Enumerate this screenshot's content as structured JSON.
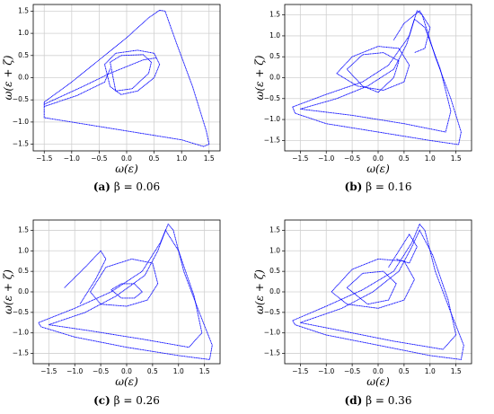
{
  "chart_data": [
    {
      "type": "line",
      "caption_tag": "(a)",
      "caption": "β = 0.06",
      "xlabel": "ω(ε)",
      "ylabel": "ω(ε + ζ)",
      "xlim": [
        -1.7,
        1.7
      ],
      "ylim": [
        -1.65,
        1.65
      ],
      "grid": true,
      "xticks": [
        {
          "value": -1.5,
          "label": "−1.5"
        },
        {
          "value": -1,
          "label": "−1.0"
        },
        {
          "value": -0.5,
          "label": "−0.5"
        },
        {
          "value": 0,
          "label": "0.0"
        },
        0.5,
        {
          "value": 1,
          "label": "1.0"
        },
        1.5
      ],
      "yticks": [
        {
          "value": -1.5,
          "label": "−1.5"
        },
        {
          "value": -1,
          "label": "−1.0"
        },
        {
          "value": -0.5,
          "label": "−0.5"
        },
        {
          "value": 0,
          "label": "0.0"
        },
        0.5,
        {
          "value": 1,
          "label": "1.0"
        },
        1.5
      ],
      "series": [
        {
          "color": "#0000ff",
          "x": [
            -1.5,
            -1.0,
            -0.5,
            0.0,
            0.4,
            0.6,
            0.7,
            0.9,
            1.2,
            1.45,
            1.5,
            1.4,
            1.0,
            0.0,
            -1.0,
            -1.5,
            -1.5
          ],
          "values": [
            -0.55,
            -0.1,
            0.4,
            0.9,
            1.35,
            1.52,
            1.5,
            0.8,
            -0.2,
            -1.2,
            -1.5,
            -1.55,
            -1.4,
            -1.2,
            -1.0,
            -0.9,
            -0.55
          ]
        },
        {
          "color": "#0000ff",
          "x": [
            -0.4,
            -0.2,
            0.2,
            0.5,
            0.6,
            0.5,
            0.2,
            -0.1,
            -0.3,
            -0.4
          ],
          "values": [
            0.3,
            0.55,
            0.62,
            0.55,
            0.3,
            0.0,
            -0.3,
            -0.38,
            -0.2,
            0.3
          ]
        },
        {
          "color": "#0000ff",
          "x": [
            -0.3,
            -0.1,
            0.3,
            0.45,
            0.4,
            0.1,
            -0.2,
            -0.3
          ],
          "values": [
            0.35,
            0.5,
            0.52,
            0.35,
            0.1,
            -0.25,
            -0.3,
            0.35
          ]
        },
        {
          "color": "#0000ff",
          "x": [
            -1.5,
            -0.8,
            -0.3,
            0.3,
            0.55
          ],
          "values": [
            -0.6,
            -0.2,
            0.1,
            0.4,
            0.45
          ]
        },
        {
          "color": "#0000ff",
          "x": [
            -1.5,
            -0.9,
            -0.4,
            -0.3
          ],
          "values": [
            -0.65,
            -0.4,
            -0.1,
            0.2
          ]
        }
      ]
    },
    {
      "type": "line",
      "caption_tag": "(b)",
      "caption": "β = 0.16",
      "xlabel": "ω(ε)",
      "ylabel": "ω(ε + ζ)",
      "xlim": [
        -1.8,
        1.8
      ],
      "ylim": [
        -1.75,
        1.75
      ],
      "grid": true,
      "xticks": [
        {
          "value": -1.5,
          "label": "−1.5"
        },
        {
          "value": -1,
          "label": "−1.0"
        },
        {
          "value": -0.5,
          "label": "−0.5"
        },
        {
          "value": 0,
          "label": "0.0"
        },
        0.5,
        {
          "value": 1,
          "label": "1.0"
        },
        1.5
      ],
      "yticks": [
        {
          "value": -1.5,
          "label": "−1.5"
        },
        {
          "value": -1,
          "label": "−1.0"
        },
        {
          "value": -0.5,
          "label": "−0.5"
        },
        {
          "value": 0,
          "label": "0.0"
        },
        0.5,
        {
          "value": 1,
          "label": "1.0"
        },
        1.5
      ],
      "series": [
        {
          "color": "#0000ff",
          "x": [
            -1.65,
            -1.0,
            -0.3,
            0.2,
            0.6,
            0.75,
            0.85,
            1.1,
            1.4,
            1.6,
            1.55,
            1.0,
            0.0,
            -1.0,
            -1.6,
            -1.65
          ],
          "values": [
            -0.7,
            -0.4,
            -0.1,
            0.3,
            1.0,
            1.6,
            1.5,
            0.5,
            -0.5,
            -1.3,
            -1.6,
            -1.5,
            -1.3,
            -1.1,
            -0.85,
            -0.7
          ]
        },
        {
          "color": "#0000ff",
          "x": [
            -1.5,
            -0.8,
            -0.2,
            0.3,
            0.55,
            0.7,
            0.9,
            1.2,
            1.4,
            1.3,
            0.5,
            -0.5,
            -1.5
          ],
          "values": [
            -0.75,
            -0.5,
            -0.2,
            0.2,
            0.8,
            1.4,
            1.2,
            0.2,
            -0.8,
            -1.3,
            -1.1,
            -0.9,
            -0.75
          ]
        },
        {
          "color": "#0000ff",
          "x": [
            -0.8,
            -0.5,
            0.0,
            0.4,
            0.6,
            0.5,
            0.1,
            -0.4,
            -0.8
          ],
          "values": [
            0.1,
            0.5,
            0.75,
            0.7,
            0.3,
            -0.1,
            -0.3,
            -0.2,
            0.1
          ]
        },
        {
          "color": "#0000ff",
          "x": [
            -0.6,
            -0.3,
            0.1,
            0.4,
            0.3,
            0.0,
            -0.3,
            -0.6
          ],
          "values": [
            0.2,
            0.55,
            0.6,
            0.4,
            0.0,
            -0.35,
            -0.2,
            0.2
          ]
        },
        {
          "color": "#0000ff",
          "x": [
            0.3,
            0.5,
            0.8,
            1.0,
            0.9,
            0.7
          ],
          "values": [
            0.9,
            1.3,
            1.6,
            1.2,
            0.7,
            0.6
          ]
        }
      ]
    },
    {
      "type": "line",
      "caption_tag": "(c)",
      "caption": "β = 0.26",
      "xlabel": "ω(ε)",
      "ylabel": "ω(ε + ζ)",
      "xlim": [
        -1.8,
        1.8
      ],
      "ylim": [
        -1.75,
        1.75
      ],
      "grid": true,
      "xticks": [
        {
          "value": -1.5,
          "label": "−1.5"
        },
        {
          "value": -1,
          "label": "−1.0"
        },
        {
          "value": -0.5,
          "label": "−0.5"
        },
        {
          "value": 0,
          "label": "0.0"
        },
        0.5,
        {
          "value": 1,
          "label": "1.0"
        },
        1.5
      ],
      "yticks": [
        {
          "value": -1.5,
          "label": "−1.5"
        },
        {
          "value": -1,
          "label": "−1.0"
        },
        {
          "value": -0.5,
          "label": "−0.5"
        },
        {
          "value": 0,
          "label": "0.0"
        },
        0.5,
        {
          "value": 1,
          "label": "1.0"
        },
        1.5
      ],
      "series": [
        {
          "color": "#0000ff",
          "x": [
            -1.7,
            -1.0,
            -0.3,
            0.3,
            0.65,
            0.8,
            0.9,
            1.1,
            1.4,
            1.65,
            1.6,
            1.0,
            0.0,
            -1.0,
            -1.65,
            -1.7
          ],
          "values": [
            -0.75,
            -0.4,
            0.0,
            0.5,
            1.2,
            1.65,
            1.5,
            0.5,
            -0.5,
            -1.3,
            -1.65,
            -1.55,
            -1.35,
            -1.1,
            -0.85,
            -0.75
          ]
        },
        {
          "color": "#0000ff",
          "x": [
            -1.5,
            -0.8,
            -0.2,
            0.35,
            0.6,
            0.75,
            1.0,
            1.3,
            1.45,
            1.2,
            0.3,
            -0.7,
            -1.5
          ],
          "values": [
            -0.8,
            -0.5,
            -0.1,
            0.4,
            1.0,
            1.5,
            1.0,
            -0.1,
            -1.0,
            -1.35,
            -1.15,
            -0.95,
            -0.8
          ]
        },
        {
          "color": "#0000ff",
          "x": [
            -0.7,
            -0.4,
            0.1,
            0.5,
            0.6,
            0.4,
            0.0,
            -0.5,
            -0.7
          ],
          "values": [
            0.0,
            0.6,
            0.8,
            0.7,
            0.2,
            -0.2,
            -0.35,
            -0.3,
            0.0
          ]
        },
        {
          "color": "#0000ff",
          "x": [
            -0.3,
            -0.1,
            0.15,
            0.3,
            0.15,
            -0.1,
            -0.3
          ],
          "values": [
            0.05,
            0.2,
            0.2,
            0.0,
            -0.15,
            -0.15,
            0.05
          ]
        },
        {
          "color": "#0000ff",
          "x": [
            -1.2,
            -0.8,
            -0.5,
            -0.4,
            -0.6,
            -0.9
          ],
          "values": [
            0.1,
            0.6,
            1.0,
            0.8,
            0.3,
            -0.3
          ]
        }
      ]
    },
    {
      "type": "line",
      "caption_tag": "(d)",
      "caption": "β = 0.36",
      "xlabel": "ω(ε)",
      "ylabel": "ω(ε + ζ)",
      "xlim": [
        -1.8,
        1.8
      ],
      "ylim": [
        -1.75,
        1.75
      ],
      "grid": true,
      "xticks": [
        {
          "value": -1.5,
          "label": "−1.5"
        },
        {
          "value": -1,
          "label": "−1.0"
        },
        {
          "value": -0.5,
          "label": "−0.5"
        },
        {
          "value": 0,
          "label": "0.0"
        },
        0.5,
        {
          "value": 1,
          "label": "1.0"
        },
        1.5
      ],
      "yticks": [
        {
          "value": -1.5,
          "label": "−1.5"
        },
        {
          "value": -1,
          "label": "−1.0"
        },
        {
          "value": -0.5,
          "label": "−0.5"
        },
        {
          "value": 0,
          "label": "0.0"
        },
        0.5,
        {
          "value": 1,
          "label": "1.0"
        },
        1.5
      ],
      "series": [
        {
          "color": "#0000ff",
          "x": [
            -1.65,
            -1.0,
            -0.3,
            0.3,
            0.65,
            0.8,
            0.9,
            1.1,
            1.4,
            1.65,
            1.6,
            1.0,
            0.0,
            -1.0,
            -1.6,
            -1.65
          ],
          "values": [
            -0.7,
            -0.35,
            0.05,
            0.5,
            1.2,
            1.65,
            1.5,
            0.5,
            -0.5,
            -1.3,
            -1.65,
            -1.55,
            -1.3,
            -1.05,
            -0.8,
            -0.7
          ]
        },
        {
          "color": "#0000ff",
          "x": [
            -1.5,
            -0.7,
            -0.1,
            0.4,
            0.65,
            0.8,
            1.05,
            1.35,
            1.5,
            1.25,
            0.3,
            -0.7,
            -1.5
          ],
          "values": [
            -0.75,
            -0.4,
            0.0,
            0.5,
            1.1,
            1.5,
            0.9,
            -0.2,
            -1.05,
            -1.4,
            -1.2,
            -0.95,
            -0.75
          ]
        },
        {
          "color": "#0000ff",
          "x": [
            -0.9,
            -0.5,
            0.0,
            0.5,
            0.7,
            0.5,
            0.0,
            -0.6,
            -0.9
          ],
          "values": [
            0.0,
            0.55,
            0.8,
            0.75,
            0.3,
            -0.2,
            -0.4,
            -0.3,
            0.0
          ]
        },
        {
          "color": "#0000ff",
          "x": [
            -0.6,
            -0.3,
            0.1,
            0.35,
            0.2,
            -0.2,
            -0.6
          ],
          "values": [
            0.1,
            0.45,
            0.5,
            0.2,
            -0.2,
            -0.3,
            0.1
          ]
        },
        {
          "color": "#0000ff",
          "x": [
            0.2,
            0.4,
            0.6,
            0.75,
            0.6,
            0.35
          ],
          "values": [
            0.6,
            1.0,
            1.4,
            1.1,
            0.7,
            0.8
          ]
        }
      ]
    }
  ]
}
